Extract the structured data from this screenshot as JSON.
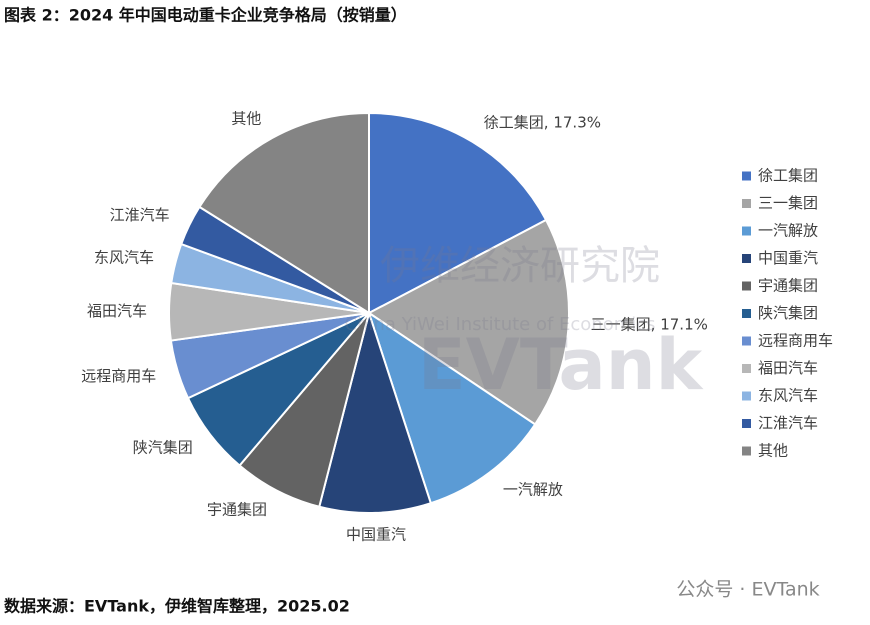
{
  "chart_data": {
    "type": "pie",
    "title": "图表 2：2024 年中国电动重卡企业竞争格局（按销量）",
    "categories": [
      "徐工集团",
      "三一集团",
      "一汽解放",
      "中国重汽",
      "宇通集团",
      "陕汽集团",
      "远程商用车",
      "福田汽车",
      "东风汽车",
      "江淮汽车",
      "其他"
    ],
    "values": [
      17.3,
      17.1,
      10.6,
      9.0,
      7.2,
      6.8,
      4.8,
      4.6,
      3.2,
      3.3,
      16.1
    ],
    "slice_labels": [
      "徐工集团, 17.3%",
      "三一集团, 17.1%",
      "一汽解放",
      "中国重汽",
      "宇通集团",
      "陕汽集团",
      "远程商用车",
      "福田汽车",
      "东风汽车",
      "江淮汽车",
      "其他"
    ],
    "colors": [
      "#4472c4",
      "#a5a5a5",
      "#5b9bd5",
      "#264478",
      "#636363",
      "#255e91",
      "#698ed0",
      "#b7b7b7",
      "#8cb4e2",
      "#335aa1",
      "#848484"
    ],
    "legend": "right",
    "source": "数据来源：EVTank，伊维智库整理，2025.02",
    "watermark": [
      "伊维经济研究院",
      "China YiWei Institute of Economics",
      "EVTank",
      "公众号 · EVTank"
    ]
  }
}
